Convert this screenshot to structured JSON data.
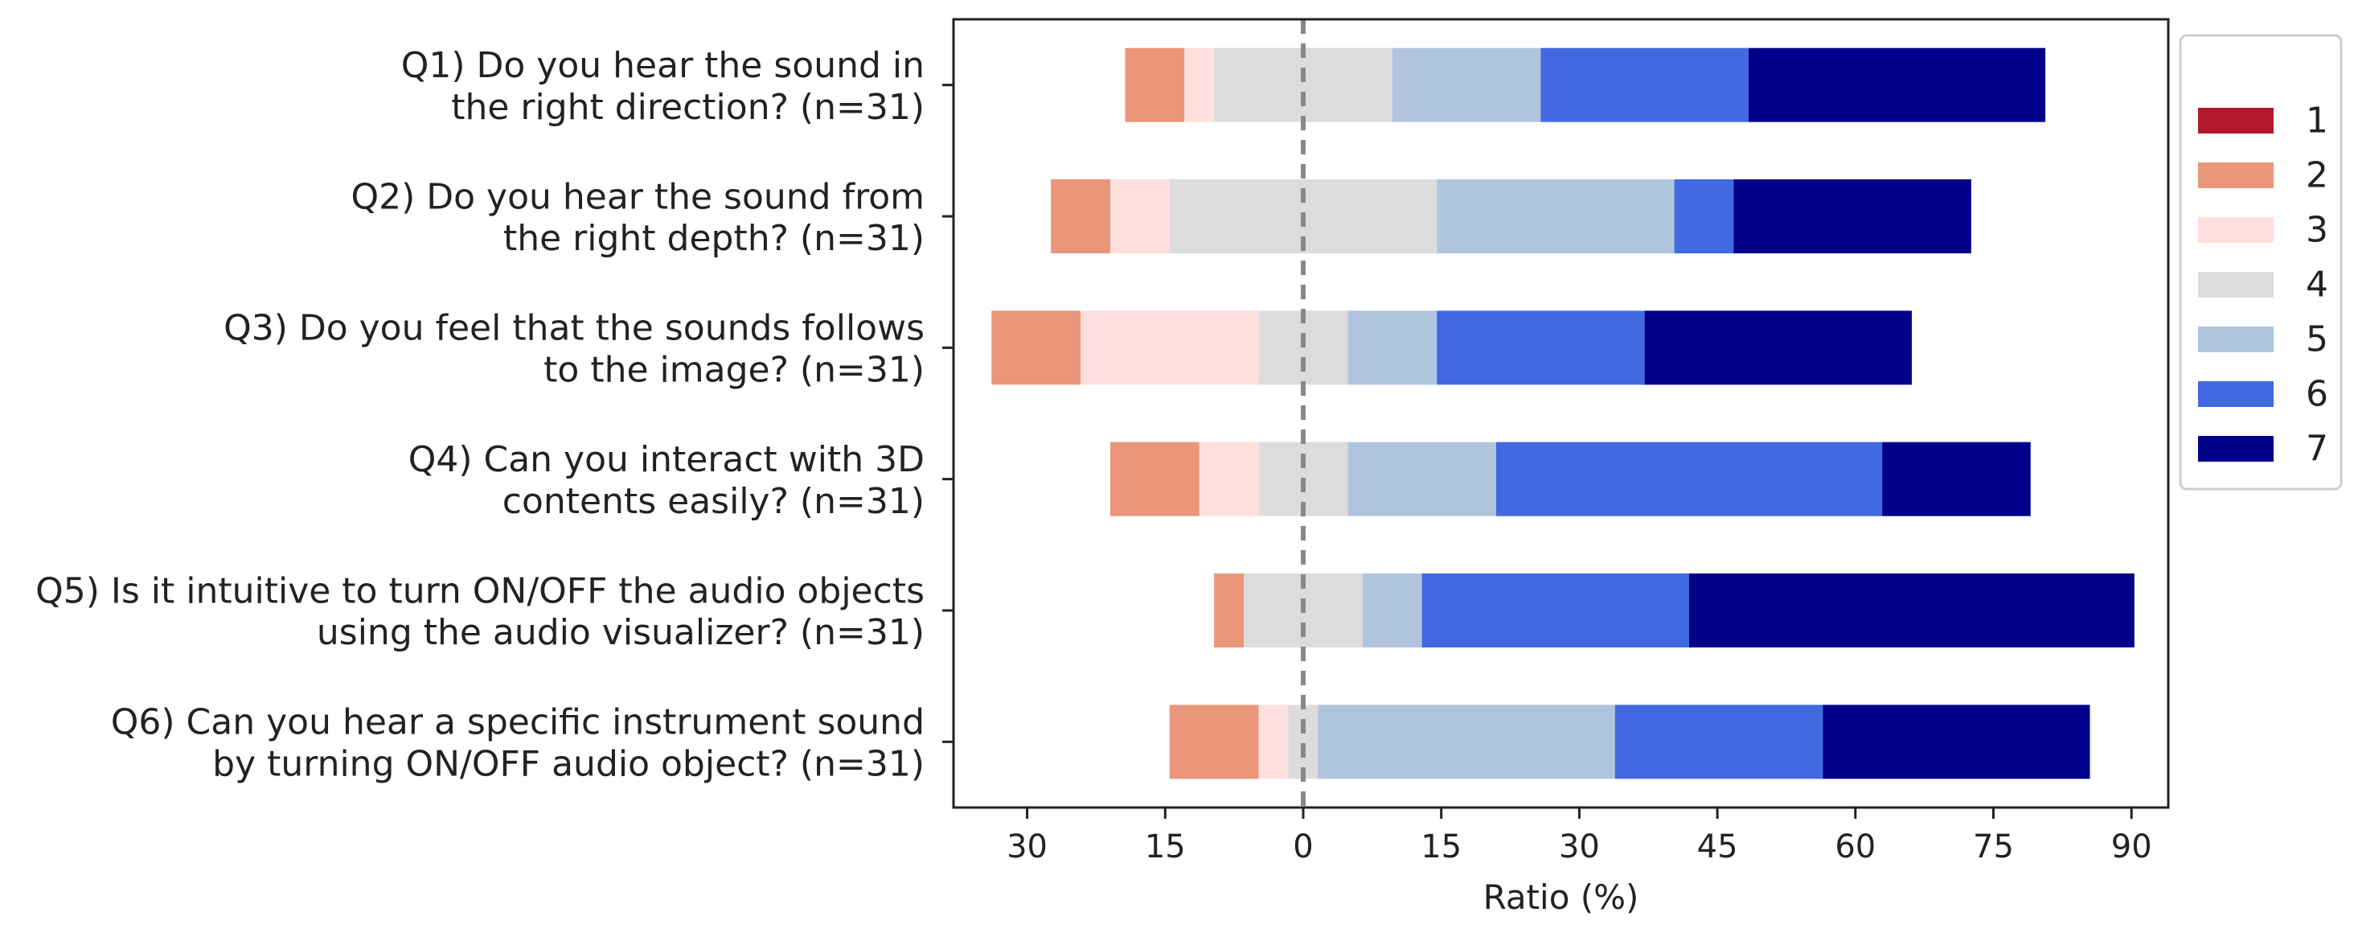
{
  "chart_data": {
    "type": "bar",
    "orientation": "horizontal",
    "stacked": "diverging",
    "xlabel": "Ratio (%)",
    "xlim": [
      -38,
      94
    ],
    "xticks": [
      -30,
      -15,
      0,
      15,
      30,
      45,
      60,
      75,
      90
    ],
    "xtick_labels": [
      "30",
      "15",
      "0",
      "15",
      "30",
      "45",
      "60",
      "75",
      "90"
    ],
    "center_line": 0,
    "legend_position": "right",
    "categories": [
      {
        "line1": "Q1) Do you hear the sound in",
        "line2": "the right direction? (n=31)"
      },
      {
        "line1": "Q2) Do you hear the sound from",
        "line2": "the right depth? (n=31)"
      },
      {
        "line1": "Q3) Do you feel that the sounds follows",
        "line2": "to the image? (n=31)"
      },
      {
        "line1": "Q4) Can you interact with 3D",
        "line2": "contents easily? (n=31)"
      },
      {
        "line1": "Q5) Is it intuitive to turn ON/OFF the audio objects",
        "line2": "using the audio visualizer? (n=31)"
      },
      {
        "line1": "Q6) Can you hear a specific instrument sound",
        "line2": "by turning ON/OFF audio object? (n=31)"
      }
    ],
    "series": [
      {
        "name": "1",
        "color": "#b2182b",
        "values": [
          0,
          0,
          0,
          0,
          0,
          0
        ]
      },
      {
        "name": "2",
        "color": "#e9967a",
        "values": [
          6.45,
          6.45,
          9.68,
          9.68,
          3.23,
          9.68
        ]
      },
      {
        "name": "3",
        "color": "#fde0dd",
        "values": [
          3.23,
          6.45,
          19.35,
          6.45,
          0,
          3.23
        ]
      },
      {
        "name": "4",
        "color": "#dcdcdc",
        "values": [
          19.35,
          29.03,
          9.68,
          9.68,
          12.9,
          3.23
        ]
      },
      {
        "name": "5",
        "color": "#b0c4de",
        "values": [
          16.13,
          25.81,
          9.68,
          16.13,
          6.45,
          32.26
        ]
      },
      {
        "name": "6",
        "color": "#4169e1",
        "values": [
          22.58,
          6.45,
          22.58,
          41.94,
          29.03,
          22.58
        ]
      },
      {
        "name": "7",
        "color": "#00008b",
        "values": [
          32.26,
          25.81,
          29.03,
          16.13,
          48.39,
          29.03
        ]
      }
    ]
  }
}
